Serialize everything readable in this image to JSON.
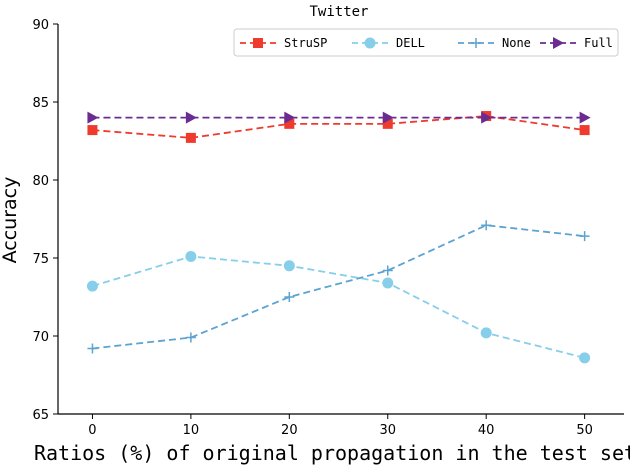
{
  "chart_data": {
    "type": "line",
    "title": "Twitter",
    "xlabel": "Ratios (%) of original propagation in the test set",
    "ylabel": "Accuracy",
    "x": [
      0,
      10,
      20,
      30,
      40,
      50
    ],
    "xlim": [
      -3.5,
      54
    ],
    "ylim": [
      65,
      90
    ],
    "xticks": [
      "0",
      "10",
      "20",
      "30",
      "40",
      "50"
    ],
    "yticks": [
      "65",
      "70",
      "75",
      "80",
      "85",
      "90"
    ],
    "legend_position": "top-right",
    "grid": false,
    "series": [
      {
        "name": "StruSP",
        "values": [
          83.2,
          82.7,
          83.6,
          83.6,
          84.1,
          83.2
        ],
        "color": "#ee3b2e",
        "marker": "square",
        "dash": "7,4"
      },
      {
        "name": "DELL",
        "values": [
          73.2,
          75.1,
          74.5,
          73.4,
          70.2,
          68.6
        ],
        "color": "#87ceeb",
        "marker": "circle",
        "dash": "7,4"
      },
      {
        "name": "None",
        "values": [
          69.2,
          69.9,
          72.5,
          74.2,
          77.1,
          76.4
        ],
        "color": "#5ba3d0",
        "marker": "plus",
        "dash": "7,4"
      },
      {
        "name": "Full",
        "values": [
          84.0,
          84.0,
          84.0,
          84.0,
          84.0,
          84.0
        ],
        "color": "#6a2c91",
        "marker": "triangle-right",
        "dash": "7,4"
      }
    ]
  }
}
